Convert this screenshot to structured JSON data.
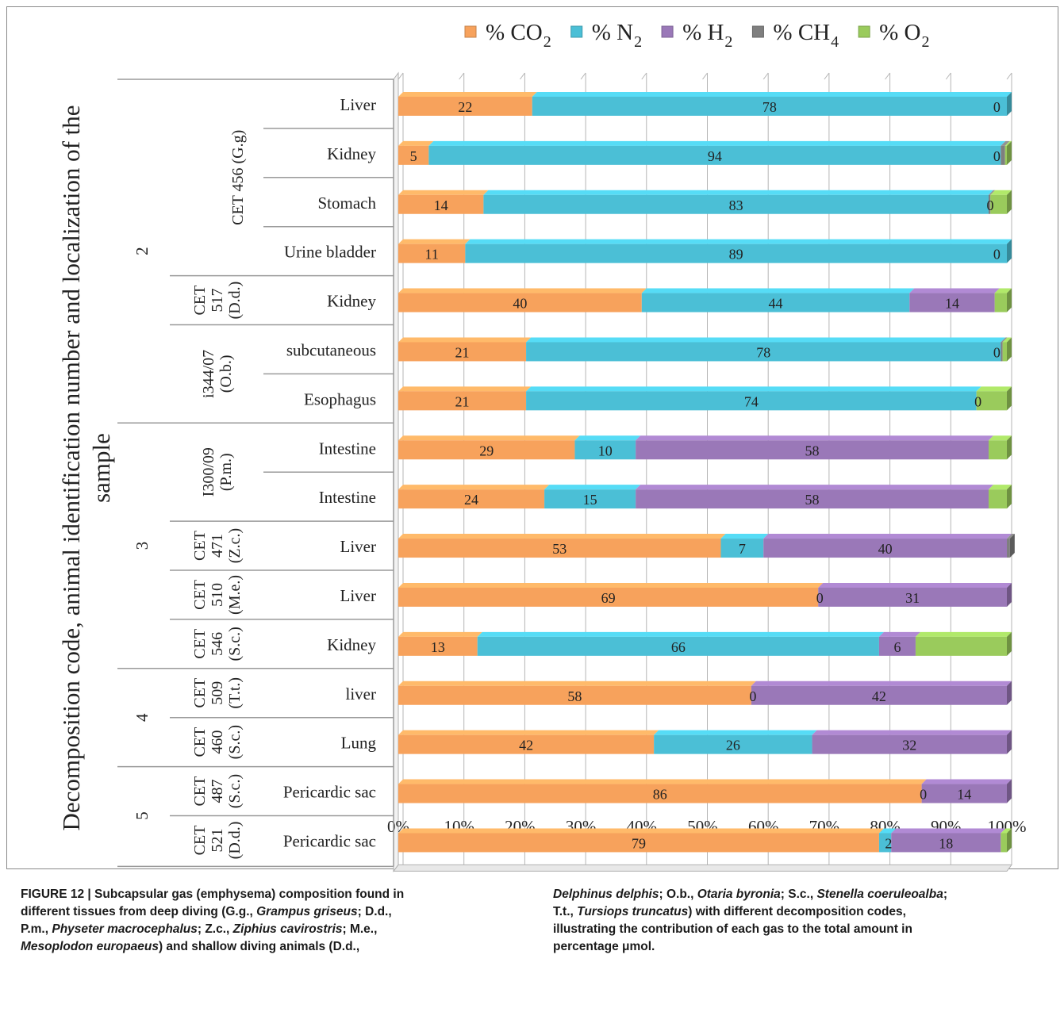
{
  "chart_data": {
    "type": "bar",
    "orientation": "horizontal",
    "stacked": "percent",
    "ylabel_line1": "Decomposition code, animal identification number and localization of the",
    "ylabel_line2": "sample",
    "legend_position": "top",
    "grid": true,
    "xlim": [
      0,
      100
    ],
    "xticks": [
      "0%",
      "10%",
      "20%",
      "30%",
      "40%",
      "50%",
      "60%",
      "70%",
      "80%",
      "90%",
      "100%"
    ],
    "legend": [
      {
        "label": "% CO",
        "sub": "2",
        "color": "#f7a25c"
      },
      {
        "label": "% N",
        "sub": "2",
        "color": "#4bbfd6"
      },
      {
        "label": "% H",
        "sub": "2",
        "color": "#9a78b8"
      },
      {
        "label": "% CH",
        "sub": "4",
        "color": "#7f7f7f"
      },
      {
        "label": "% O",
        "sub": "2",
        "color": "#9acb5c"
      }
    ],
    "categories": [
      "Liver",
      "Kidney",
      "Stomach",
      "Urine bladder",
      "Kidney",
      "subcutaneous",
      "Esophagus",
      "Intestine",
      "Intestine",
      "Liver",
      "Liver",
      "Kidney",
      "liver",
      "Lung",
      "Pericardic sac",
      "Pericardic sac"
    ],
    "series": [
      {
        "name": "% CO2",
        "values": [
          22,
          5,
          14,
          11,
          40,
          21,
          21,
          29,
          24,
          53,
          69,
          13,
          58,
          42,
          86,
          79
        ]
      },
      {
        "name": "% N2",
        "values": [
          78,
          94,
          83,
          89,
          44,
          78,
          74,
          10,
          15,
          7,
          0,
          66,
          0,
          26,
          0,
          2
        ]
      },
      {
        "name": "% H2",
        "values": [
          0,
          0,
          0,
          0,
          14,
          0,
          0,
          58,
          58,
          40,
          31,
          6,
          42,
          32,
          14,
          18
        ]
      },
      {
        "name": "% CH4",
        "values": [
          0,
          0.7,
          0.3,
          0,
          0,
          0.3,
          0,
          0,
          0,
          0.5,
          0,
          0,
          0,
          0,
          0,
          0
        ]
      },
      {
        "name": "% O2",
        "values": [
          0,
          0.3,
          2.7,
          0,
          2,
          0.7,
          5,
          3,
          3,
          0,
          0,
          15,
          0,
          0,
          0,
          1
        ]
      }
    ],
    "data_labels": [
      [
        "22",
        "78",
        "0"
      ],
      [
        "5",
        "94",
        "0"
      ],
      [
        "14",
        "83",
        "0"
      ],
      [
        "11",
        "89",
        "0"
      ],
      [
        "40",
        "44",
        "14"
      ],
      [
        "21",
        "78",
        "0"
      ],
      [
        "21",
        "74",
        "0"
      ],
      [
        "29",
        "10",
        "58"
      ],
      [
        "24",
        "15",
        "58"
      ],
      [
        "53",
        "7",
        "40"
      ],
      [
        "69",
        "0",
        "31"
      ],
      [
        "13",
        "66",
        "6"
      ],
      [
        "58",
        "0",
        "42"
      ],
      [
        "42",
        "26",
        "32"
      ],
      [
        "86",
        "0",
        "14"
      ],
      [
        "79",
        "2",
        "18"
      ]
    ],
    "animals": [
      {
        "lines": [
          "CET 456 (G.g)"
        ],
        "rows": [
          0,
          3
        ]
      },
      {
        "lines": [
          "CET",
          "517",
          "(D.d.)"
        ],
        "rows": [
          4,
          4
        ]
      },
      {
        "lines": [
          "i344/07",
          "(O.b.)"
        ],
        "rows": [
          5,
          6
        ]
      },
      {
        "lines": [
          "I300/09",
          "(P.m.)"
        ],
        "rows": [
          7,
          8
        ]
      },
      {
        "lines": [
          "CET",
          "471",
          "(Z.c.)"
        ],
        "rows": [
          9,
          9
        ]
      },
      {
        "lines": [
          "CET",
          "510",
          "(M.e.)"
        ],
        "rows": [
          10,
          10
        ]
      },
      {
        "lines": [
          "CET",
          "546",
          "(S.c.)"
        ],
        "rows": [
          11,
          11
        ]
      },
      {
        "lines": [
          "CET",
          "509",
          "(T.t.)"
        ],
        "rows": [
          12,
          12
        ]
      },
      {
        "lines": [
          "CET",
          "460",
          "(S.c.)"
        ],
        "rows": [
          13,
          13
        ]
      },
      {
        "lines": [
          "CET",
          "487",
          "(S.c.)"
        ],
        "rows": [
          14,
          14
        ]
      },
      {
        "lines": [
          "CET",
          "521",
          "(D.d.)"
        ],
        "rows": [
          15,
          15
        ]
      }
    ],
    "codes": [
      {
        "label": "2",
        "rows": [
          0,
          6
        ]
      },
      {
        "label": "3",
        "rows": [
          7,
          11
        ]
      },
      {
        "label": "4",
        "rows": [
          12,
          13
        ]
      },
      {
        "label": "5",
        "rows": [
          14,
          15
        ]
      }
    ]
  },
  "caption": {
    "left": [
      [
        {
          "t": "FIGURE 12 | Subcapsular gas (emphysema) composition found in"
        }
      ],
      [
        {
          "t": "different tissues from deep diving (G.g., "
        },
        {
          "t": "Grampus griseus",
          "i": true
        },
        {
          "t": "; D.d.,"
        }
      ],
      [
        {
          "t": "P.m., "
        },
        {
          "t": "Physeter macrocephalus",
          "i": true
        },
        {
          "t": "; Z.c., "
        },
        {
          "t": "Ziphius cavirostris",
          "i": true
        },
        {
          "t": "; M.e.,"
        }
      ],
      [
        {
          "t": "Mesoplodon europaeus",
          "i": true
        },
        {
          "t": ") and shallow diving animals (D.d.,"
        }
      ]
    ],
    "right": [
      [
        {
          "t": "Delphinus delphis",
          "i": true
        },
        {
          "t": "; O.b., "
        },
        {
          "t": "Otaria byronia",
          "i": true
        },
        {
          "t": "; S.c., "
        },
        {
          "t": "Stenella coeruleoalba",
          "i": true
        },
        {
          "t": ";"
        }
      ],
      [
        {
          "t": "T.t., "
        },
        {
          "t": "Tursiops truncatus",
          "i": true
        },
        {
          "t": ") with different decomposition codes,"
        }
      ],
      [
        {
          "t": "illustrating the contribution of each gas to the total amount in"
        }
      ],
      [
        {
          "t": "percentage μmol."
        }
      ]
    ]
  }
}
